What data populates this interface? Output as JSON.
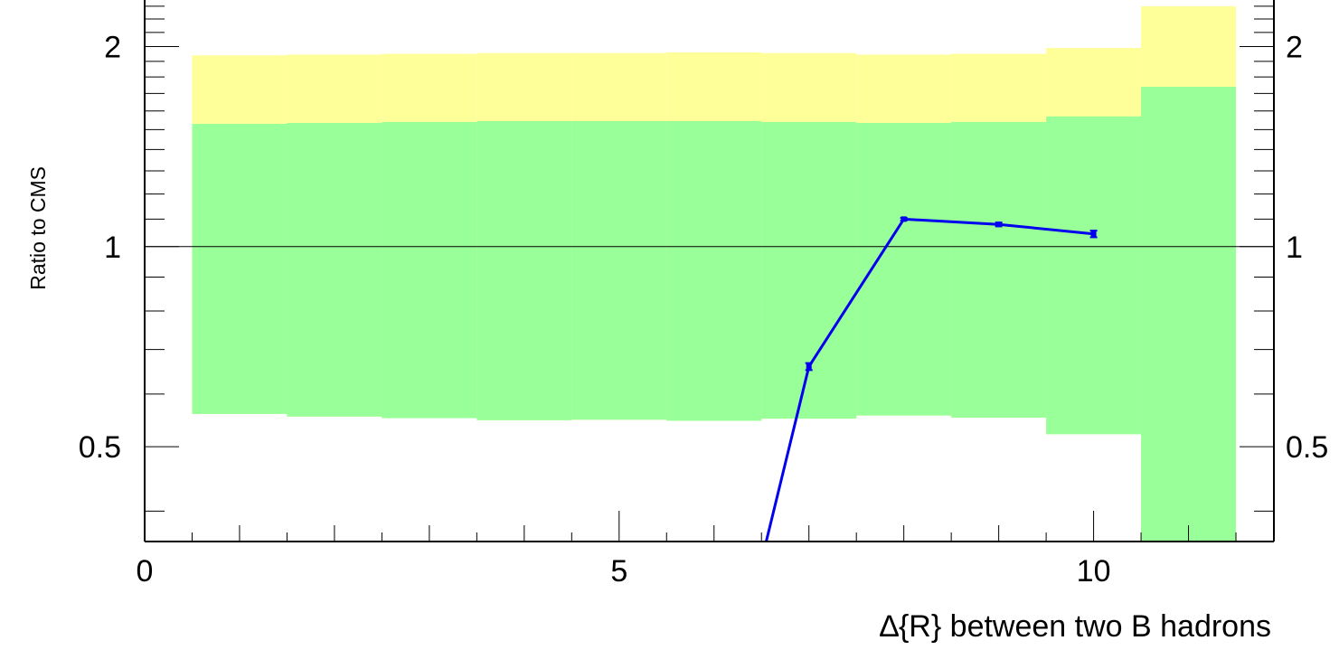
{
  "chart_data": {
    "type": "line",
    "xlabel": "∆{R} between two B hadrons",
    "ylabel": "Ratio to CMS",
    "xlim": [
      0,
      11.9
    ],
    "ylim": [
      0.36,
      2.35
    ],
    "y_scale": "log",
    "x_ticks": [
      0,
      5,
      10
    ],
    "x_tick_labels": [
      "0",
      "5",
      "10"
    ],
    "y_ticks": [
      0.5,
      1,
      2
    ],
    "y_tick_labels": [
      "0.5",
      "1",
      "2"
    ],
    "reference_line": 1,
    "bands": [
      {
        "name": "outer",
        "color": "#ffff99",
        "bins": [
          {
            "x0": 0.5,
            "x1": 1.5,
            "low": 0.56,
            "high": 1.94
          },
          {
            "x0": 1.5,
            "x1": 2.5,
            "low": 0.555,
            "high": 1.945
          },
          {
            "x0": 2.5,
            "x1": 3.5,
            "low": 0.552,
            "high": 1.95
          },
          {
            "x0": 3.5,
            "x1": 4.5,
            "low": 0.548,
            "high": 1.955
          },
          {
            "x0": 4.5,
            "x1": 5.5,
            "low": 0.549,
            "high": 1.955
          },
          {
            "x0": 5.5,
            "x1": 6.5,
            "low": 0.547,
            "high": 1.96
          },
          {
            "x0": 6.5,
            "x1": 7.5,
            "low": 0.551,
            "high": 1.955
          },
          {
            "x0": 7.5,
            "x1": 8.5,
            "low": 0.557,
            "high": 1.945
          },
          {
            "x0": 8.5,
            "x1": 9.5,
            "low": 0.553,
            "high": 1.95
          },
          {
            "x0": 9.5,
            "x1": 10.5,
            "low": 0.522,
            "high": 1.99
          },
          {
            "x0": 10.5,
            "x1": 11.5,
            "low": 0.36,
            "high": 2.3
          }
        ]
      },
      {
        "name": "inner",
        "color": "#99ff99",
        "bins": [
          {
            "x0": 0.5,
            "x1": 1.5,
            "low": 0.56,
            "high": 1.53
          },
          {
            "x0": 1.5,
            "x1": 2.5,
            "low": 0.555,
            "high": 1.535
          },
          {
            "x0": 2.5,
            "x1": 3.5,
            "low": 0.552,
            "high": 1.54
          },
          {
            "x0": 3.5,
            "x1": 4.5,
            "low": 0.548,
            "high": 1.545
          },
          {
            "x0": 4.5,
            "x1": 5.5,
            "low": 0.549,
            "high": 1.545
          },
          {
            "x0": 5.5,
            "x1": 6.5,
            "low": 0.547,
            "high": 1.545
          },
          {
            "x0": 6.5,
            "x1": 7.5,
            "low": 0.551,
            "high": 1.54
          },
          {
            "x0": 7.5,
            "x1": 8.5,
            "low": 0.557,
            "high": 1.535
          },
          {
            "x0": 8.5,
            "x1": 9.5,
            "low": 0.553,
            "high": 1.54
          },
          {
            "x0": 9.5,
            "x1": 10.5,
            "low": 0.522,
            "high": 1.57
          },
          {
            "x0": 10.5,
            "x1": 11.5,
            "low": 0.36,
            "high": 1.74
          }
        ]
      }
    ],
    "series": [
      {
        "color": "#0000ee",
        "x": [
          6.55,
          7.0,
          8.0,
          9.0,
          10.0
        ],
        "y": [
          0.36,
          0.66,
          1.1,
          1.08,
          1.045
        ],
        "yerr": [
          0,
          0.008,
          0.005,
          0.007,
          0.012
        ]
      }
    ]
  }
}
